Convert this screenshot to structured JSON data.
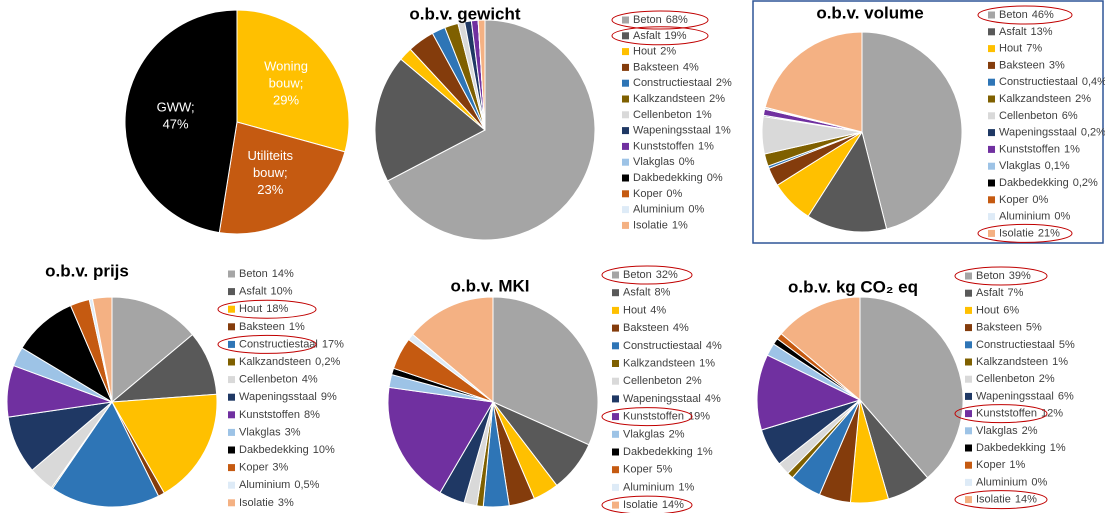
{
  "chart_data": [
    {
      "type": "pie",
      "categories": [
        "Woning bouw;",
        "Utiliteits bouw;",
        "GWW;"
      ],
      "values": [
        29,
        23,
        47
      ],
      "value_labels": [
        "29%",
        "23%",
        "47%"
      ],
      "colors": [
        "#ffc000",
        "#c55a11",
        "#000000"
      ]
    },
    {
      "type": "pie",
      "title": "o.b.v. gewicht",
      "categories": [
        "Beton",
        "Asfalt",
        "Hout",
        "Baksteen",
        "Constructiestaal",
        "Kalkzandsteen",
        "Cellenbeton",
        "Wapeningsstaal",
        "Kunststoffen",
        "Vlakglas",
        "Dakbedekking",
        "Koper",
        "Aluminium",
        "Isolatie"
      ],
      "values": [
        68,
        19,
        2,
        4,
        2,
        2,
        1,
        1,
        1,
        0,
        0,
        0,
        0,
        1
      ],
      "value_labels": [
        "68%",
        "19%",
        "2%",
        "4%",
        "2%",
        "2%",
        "1%",
        "1%",
        "1%",
        "0%",
        "0%",
        "0%",
        "0%",
        "1%"
      ],
      "colors": [
        "#a5a5a5",
        "#595959",
        "#ffc000",
        "#843c0c",
        "#2e75b6",
        "#7f6000",
        "#d9d9d9",
        "#1f3864",
        "#7030a0",
        "#9dc3e6",
        "#000000",
        "#c55a11",
        "#deebf7",
        "#f4b183"
      ],
      "highlight": [
        0,
        1
      ]
    },
    {
      "type": "pie",
      "title": "o.b.v. volume",
      "categories": [
        "Beton",
        "Asfalt",
        "Hout",
        "Baksteen",
        "Constructiestaal",
        "Kalkzandsteen",
        "Cellenbeton",
        "Wapeningsstaal",
        "Kunststoffen",
        "Vlakglas",
        "Dakbedekking",
        "Koper",
        "Aluminium",
        "Isolatie"
      ],
      "values": [
        46,
        13,
        7,
        3,
        0.4,
        2,
        6,
        0.2,
        1,
        0.1,
        0.2,
        0,
        0,
        21
      ],
      "value_labels": [
        "46%",
        "13%",
        "7%",
        "3%",
        "0,4%",
        "2%",
        "6%",
        "0,2%",
        "1%",
        "0,1%",
        "0,2%",
        "0%",
        "0%",
        "21%"
      ],
      "colors": [
        "#a5a5a5",
        "#595959",
        "#ffc000",
        "#843c0c",
        "#2e75b6",
        "#7f6000",
        "#d9d9d9",
        "#1f3864",
        "#7030a0",
        "#9dc3e6",
        "#000000",
        "#c55a11",
        "#deebf7",
        "#f4b183"
      ],
      "highlight": [
        0,
        13
      ]
    },
    {
      "type": "pie",
      "title": "o.b.v. prijs",
      "categories": [
        "Beton",
        "Asfalt",
        "Hout",
        "Baksteen",
        "Constructiestaal",
        "Kalkzandsteen",
        "Cellenbeton",
        "Wapeningsstaal",
        "Kunststoffen",
        "Vlakglas",
        "Dakbedekking",
        "Koper",
        "Aluminium",
        "Isolatie"
      ],
      "values": [
        14,
        10,
        18,
        1,
        17,
        0.2,
        4,
        9,
        8,
        3,
        10,
        3,
        0.5,
        3
      ],
      "value_labels": [
        "14%",
        "10%",
        "18%",
        "1%",
        "17%",
        "0,2%",
        "4%",
        "9%",
        "8%",
        "3%",
        "10%",
        "3%",
        "0,5%",
        "3%"
      ],
      "colors": [
        "#a5a5a5",
        "#595959",
        "#ffc000",
        "#843c0c",
        "#2e75b6",
        "#7f6000",
        "#d9d9d9",
        "#1f3864",
        "#7030a0",
        "#9dc3e6",
        "#000000",
        "#c55a11",
        "#deebf7",
        "#f4b183"
      ],
      "highlight": [
        2,
        4
      ]
    },
    {
      "type": "pie",
      "title": "o.b.v. MKI",
      "categories": [
        "Beton",
        "Asfalt",
        "Hout",
        "Baksteen",
        "Constructiestaal",
        "Kalkzandsteen",
        "Cellenbeton",
        "Wapeningsstaal",
        "Kunststoffen",
        "Vlakglas",
        "Dakbedekking",
        "Koper",
        "Aluminium",
        "Isolatie"
      ],
      "values": [
        32,
        8,
        4,
        4,
        4,
        1,
        2,
        4,
        19,
        2,
        1,
        5,
        1,
        14
      ],
      "value_labels": [
        "32%",
        "8%",
        "4%",
        "4%",
        "4%",
        "1%",
        "2%",
        "4%",
        "19%",
        "2%",
        "1%",
        "5%",
        "1%",
        "14%"
      ],
      "colors": [
        "#a5a5a5",
        "#595959",
        "#ffc000",
        "#843c0c",
        "#2e75b6",
        "#7f6000",
        "#d9d9d9",
        "#1f3864",
        "#7030a0",
        "#9dc3e6",
        "#000000",
        "#c55a11",
        "#deebf7",
        "#f4b183"
      ],
      "highlight": [
        0,
        8,
        13
      ]
    },
    {
      "type": "pie",
      "title": "o.b.v. kg CO₂ eq",
      "categories": [
        "Beton",
        "Asfalt",
        "Hout",
        "Baksteen",
        "Constructiestaal",
        "Kalkzandsteen",
        "Cellenbeton",
        "Wapeningsstaal",
        "Kunststoffen",
        "Vlakglas",
        "Dakbedekking",
        "Koper",
        "Aluminium",
        "Isolatie"
      ],
      "values": [
        39,
        7,
        6,
        5,
        5,
        1,
        2,
        6,
        12,
        2,
        1,
        1,
        0,
        14
      ],
      "value_labels": [
        "39%",
        "7%",
        "6%",
        "5%",
        "5%",
        "1%",
        "2%",
        "6%",
        "12%",
        "2%",
        "1%",
        "1%",
        "0%",
        "14%"
      ],
      "colors": [
        "#a5a5a5",
        "#595959",
        "#ffc000",
        "#843c0c",
        "#2e75b6",
        "#7f6000",
        "#d9d9d9",
        "#1f3864",
        "#7030a0",
        "#9dc3e6",
        "#000000",
        "#c55a11",
        "#deebf7",
        "#f4b183"
      ],
      "highlight": [
        0,
        8,
        13
      ]
    }
  ]
}
